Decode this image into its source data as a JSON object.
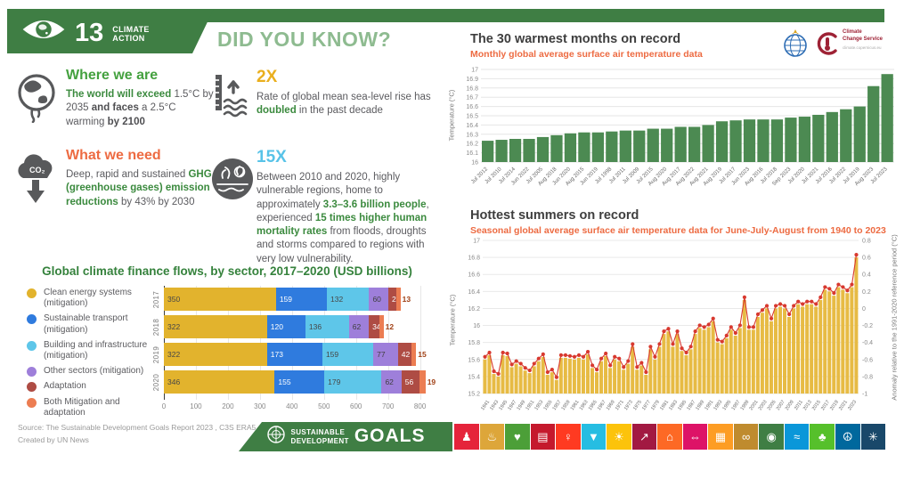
{
  "header": {
    "goal_number": "13",
    "goal_line1": "CLIMATE",
    "goal_line2": "ACTION",
    "did_you_know": "DID YOU KNOW?"
  },
  "facts": {
    "where": {
      "title": "Where we are",
      "r1": "The world will exceed ",
      "r2": "1.5°C by 2035 ",
      "r3": "and faces",
      "r4": " a 2.5°C warming ",
      "r5": "by 2100"
    },
    "need": {
      "title": "What we need",
      "r1": "Deep, rapid and sustained ",
      "r2": "GHG (greenhouse gases) emission reductions",
      "r3": " by 43% by 2030"
    },
    "x2": {
      "title": "2X",
      "r1": "Rate of global mean sea-level rise has ",
      "r2": "doubled",
      "r3": " in the past decade"
    },
    "x15": {
      "title": "15X",
      "r1": "Between 2010 and 2020, highly vulnerable regions, home to approximately ",
      "r2": "3.3–3.6 billion people",
      "r3": ", experienced ",
      "r4": "15 times higher human mortality rates",
      "r5": " from floods, droughts and storms compared to regions with very low vulnerability."
    }
  },
  "chart_data": [
    {
      "type": "bar",
      "orientation": "horizontal",
      "stacked": true,
      "title": "Global climate finance flows, by sector, 2017–2020 (USD billions)",
      "categories": [
        "2017",
        "2018",
        "2019",
        "2020"
      ],
      "series": [
        {
          "name": "Clean energy systems (mitigation)",
          "legend": "Clean energy systems\n(mitigation)",
          "color": "#E2B32D",
          "text": "#474747",
          "values": [
            350,
            322,
            322,
            346
          ]
        },
        {
          "name": "Sustainable transport (mitigation)",
          "legend": "Sustainable transport\n(mitigation)",
          "color": "#2F7BDE",
          "text": "#FFFFFF",
          "values": [
            159,
            120,
            173,
            155
          ]
        },
        {
          "name": "Building and infrastructure (mitigation)",
          "legend": "Building and infrastructure\n(mitigation)",
          "color": "#5EC6E9",
          "text": "#474747",
          "values": [
            132,
            136,
            159,
            179
          ]
        },
        {
          "name": "Other sectors (mitigation)",
          "legend": "Other sectors (mitigation)",
          "color": "#9E7FDA",
          "text": "#3F3F3F",
          "values": [
            60,
            62,
            77,
            62
          ]
        },
        {
          "name": "Adaptation",
          "legend": "Adaptation",
          "color": "#AE4C44",
          "text": "#FFFFFF",
          "values": [
            25,
            34,
            42,
            56
          ]
        },
        {
          "name": "Both Mitigation and adaptation",
          "legend": "Both Mitigation and\nadaptation",
          "color": "#EC7D52",
          "text": "#A04015",
          "outside": true,
          "values": [
            13,
            12,
            15,
            19
          ]
        }
      ],
      "xticks": [
        0,
        100,
        200,
        300,
        400,
        500,
        600,
        700,
        800
      ],
      "xmax": 840
    },
    {
      "type": "bar",
      "title": "The 30 warmest months on record",
      "subtitle": "Monthly global average surface air temperature data",
      "ylabel": "Temperature (°C)",
      "bar_color": "#4C8A52",
      "ylim": [
        16,
        17
      ],
      "yticks": [
        "17",
        "16.9",
        "16.8",
        "16.7",
        "16.6",
        "16.5",
        "16.4",
        "16.3",
        "16.2",
        "16.1",
        "16"
      ],
      "categories": [
        "Jul 2012",
        "Jul 2010",
        "Jul 2014",
        "Jun 2022",
        "Jul 2005",
        "Aug 2018",
        "Jun 2020",
        "Aug 2015",
        "Jun 2019",
        "Jul 1998",
        "Jul 2011",
        "Jul 2009",
        "Jul 2015",
        "Aug 2020",
        "Aug 2017",
        "Aug 2022",
        "Aug 2021",
        "Aug 2019",
        "Jul 2017",
        "Jun 2023",
        "Aug 2016",
        "Jul 2018",
        "Sep 2023",
        "Jul 2020",
        "Jul 2021",
        "Jul 2016",
        "Jul 2022",
        "Jul 2019",
        "Aug 2023",
        "Jul 2023"
      ],
      "values": [
        16.23,
        16.24,
        16.25,
        16.25,
        16.27,
        16.29,
        16.31,
        16.32,
        16.32,
        16.33,
        16.34,
        16.34,
        16.36,
        16.36,
        16.38,
        16.38,
        16.4,
        16.44,
        16.45,
        16.46,
        16.46,
        16.46,
        16.48,
        16.49,
        16.51,
        16.54,
        16.57,
        16.6,
        16.82,
        16.95
      ]
    },
    {
      "type": "bar+line",
      "title": "Hottest summers on record",
      "subtitle": "Seasonal global average surface air temperature data for June-July-August from 1940 to 2023",
      "ylabel_left": "Temperature (°C)",
      "ylabel_right": "Anomaly relative to the 1991-2020 reference period (°C)",
      "bar_color": "#E7BB44",
      "dot_color": "#D8392F",
      "ylim_left": [
        15.2,
        17
      ],
      "anomaly_offset": 16.2,
      "yticks_left": [
        "17",
        "16.8",
        "16.6",
        "16.4",
        "16.2",
        "16",
        "15.8",
        "15.6",
        "15.4",
        "15.2"
      ],
      "yticks_right": [
        "0.8",
        "0.6",
        "0.4",
        "0.2",
        "0",
        "-0.2",
        "-0.4",
        "-0.6",
        "-0.8",
        "-1"
      ],
      "year_start": 1940,
      "xticks": [
        "1941",
        "1943",
        "1945",
        "1947",
        "1949",
        "1951",
        "1953",
        "1955",
        "1957",
        "1959",
        "1961",
        "1963",
        "1965",
        "1967",
        "1969",
        "1971",
        "1973",
        "1975",
        "1977",
        "1979",
        "1981",
        "1983",
        "1985",
        "1987",
        "1989",
        "1991",
        "1993",
        "1995",
        "1997",
        "1999",
        "2001",
        "2003",
        "2005",
        "2007",
        "2009",
        "2011",
        "2013",
        "2015",
        "2017",
        "2019",
        "2021",
        "2023"
      ],
      "values": [
        15.6,
        15.65,
        15.43,
        15.4,
        15.65,
        15.64,
        15.51,
        15.55,
        15.52,
        15.47,
        15.44,
        15.52,
        15.58,
        15.63,
        15.42,
        15.45,
        15.36,
        15.62,
        15.62,
        15.61,
        15.6,
        15.62,
        15.6,
        15.66,
        15.5,
        15.45,
        15.58,
        15.64,
        15.5,
        15.6,
        15.58,
        15.48,
        15.55,
        15.75,
        15.48,
        15.53,
        15.42,
        15.72,
        15.6,
        15.75,
        15.9,
        15.93,
        15.75,
        15.9,
        15.7,
        15.65,
        15.72,
        15.9,
        15.97,
        15.95,
        15.98,
        16.05,
        15.8,
        15.78,
        15.85,
        15.95,
        15.88,
        15.97,
        16.3,
        15.95,
        15.95,
        16.1,
        16.15,
        16.2,
        16.05,
        16.2,
        16.22,
        16.2,
        16.1,
        16.2,
        16.25,
        16.22,
        16.25,
        16.25,
        16.22,
        16.3,
        16.42,
        16.4,
        16.35,
        16.45,
        16.42,
        16.38,
        16.45,
        16.8
      ]
    }
  ],
  "logos": {
    "c3s_line1": "Climate",
    "c3s_line2": "Change Service",
    "c3s_url": "climate.copernicus.eu"
  },
  "footer": {
    "source_line1": "Source: The Sustainable Development Goals Report 2023 , C3S ERA5 dataset",
    "source_line2": "Created by UN News",
    "sdg_line1": "SUSTAINABLE",
    "sdg_line2": "DEVELOPMENT",
    "sdg_goals": "GOALS",
    "tiles": [
      {
        "name": "sdg-1-no-poverty",
        "color": "#E5243B",
        "glyph": "♟"
      },
      {
        "name": "sdg-2-zero-hunger",
        "color": "#DDA63A",
        "glyph": "♨"
      },
      {
        "name": "sdg-3-good-health",
        "color": "#4C9F38",
        "glyph": "♥"
      },
      {
        "name": "sdg-4-quality-education",
        "color": "#C5192D",
        "glyph": "▤"
      },
      {
        "name": "sdg-5-gender-equality",
        "color": "#FF3A21",
        "glyph": "♀"
      },
      {
        "name": "sdg-6-clean-water",
        "color": "#26BDE2",
        "glyph": "▼"
      },
      {
        "name": "sdg-7-clean-energy",
        "color": "#FCC30B",
        "glyph": "☀"
      },
      {
        "name": "sdg-8-economic-growth",
        "color": "#A21942",
        "glyph": "↗"
      },
      {
        "name": "sdg-9-industry-innovation",
        "color": "#FD6925",
        "glyph": "⌂"
      },
      {
        "name": "sdg-10-reduced-inequalities",
        "color": "#DD1367",
        "glyph": "⇔"
      },
      {
        "name": "sdg-11-sustainable-cities",
        "color": "#FD9D24",
        "glyph": "▦"
      },
      {
        "name": "sdg-12-responsible-consumption",
        "color": "#BF8B2E",
        "glyph": "∞"
      },
      {
        "name": "sdg-13-climate-action",
        "color": "#3F7E44",
        "glyph": "◉"
      },
      {
        "name": "sdg-14-life-below-water",
        "color": "#0A97D9",
        "glyph": "≈"
      },
      {
        "name": "sdg-15-life-on-land",
        "color": "#56C02B",
        "glyph": "♣"
      },
      {
        "name": "sdg-16-peace-justice",
        "color": "#00689D",
        "glyph": "☮"
      },
      {
        "name": "sdg-17-partnerships",
        "color": "#19486A",
        "glyph": "✳"
      }
    ]
  }
}
